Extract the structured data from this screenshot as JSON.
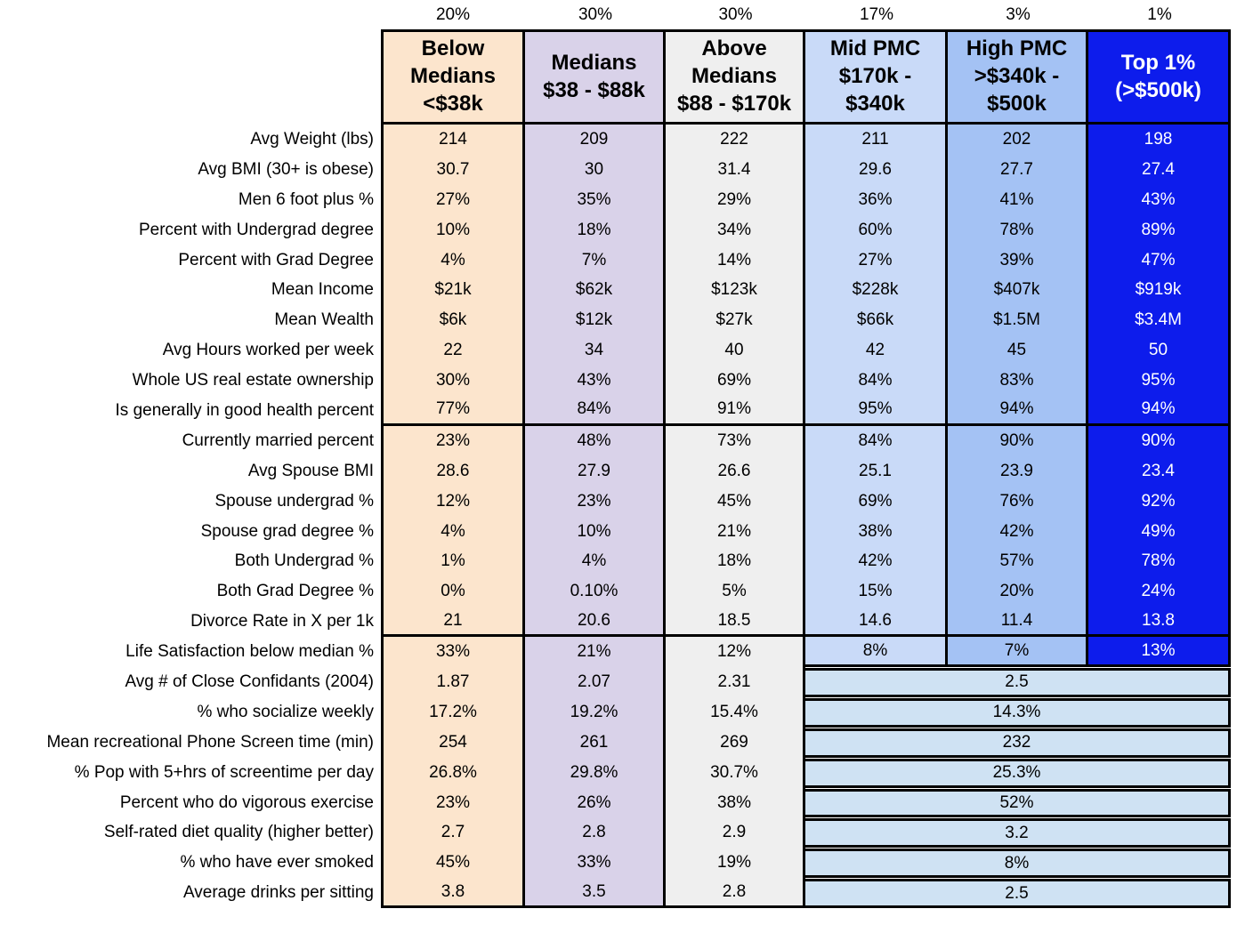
{
  "styles": {
    "column_bg": [
      "#fce5cd",
      "#d9d2e9",
      "#efefef",
      "#c9daf8",
      "#a4c2f4",
      "#0d1cec"
    ],
    "column_text": [
      "#000000",
      "#000000",
      "#000000",
      "#000000",
      "#000000",
      "#ffffff"
    ],
    "merged_bg": "#cfe2f3",
    "border": "#000000"
  },
  "chart_data": {
    "type": "table",
    "column_shares": [
      "20%",
      "30%",
      "30%",
      "17%",
      "3%",
      "1%"
    ],
    "columns": [
      "Below\nMedians\n<$38k",
      "Medians\n$38 - $88k",
      "Above\nMedians\n$88 - $170k",
      "Mid PMC\n$170k -\n$340k",
      "High PMC\n>$340k -\n$500k",
      "Top 1%\n(>$500k)"
    ],
    "rows": [
      {
        "label": "Avg Weight (lbs)",
        "values": [
          "214",
          "209",
          "222",
          "211",
          "202",
          "198"
        ]
      },
      {
        "label": "Avg BMI (30+ is obese)",
        "values": [
          "30.7",
          "30",
          "31.4",
          "29.6",
          "27.7",
          "27.4"
        ]
      },
      {
        "label": "Men 6 foot plus %",
        "values": [
          "27%",
          "35%",
          "29%",
          "36%",
          "41%",
          "43%"
        ]
      },
      {
        "label": "Percent with Undergrad degree",
        "values": [
          "10%",
          "18%",
          "34%",
          "60%",
          "78%",
          "89%"
        ]
      },
      {
        "label": "Percent with Grad Degree",
        "values": [
          "4%",
          "7%",
          "14%",
          "27%",
          "39%",
          "47%"
        ]
      },
      {
        "label": "Mean Income",
        "values": [
          "$21k",
          "$62k",
          "$123k",
          "$228k",
          "$407k",
          "$919k"
        ]
      },
      {
        "label": "Mean Wealth",
        "values": [
          "$6k",
          "$12k",
          "$27k",
          "$66k",
          "$1.5M",
          "$3.4M"
        ]
      },
      {
        "label": "Avg Hours worked per week",
        "values": [
          "22",
          "34",
          "40",
          "42",
          "45",
          "50"
        ]
      },
      {
        "label": "Whole US real estate ownership",
        "values": [
          "30%",
          "43%",
          "69%",
          "84%",
          "83%",
          "95%"
        ]
      },
      {
        "label": "Is generally in good health percent",
        "values": [
          "77%",
          "84%",
          "91%",
          "95%",
          "94%",
          "94%"
        ],
        "section_end": true
      },
      {
        "label": "Currently married percent",
        "values": [
          "23%",
          "48%",
          "73%",
          "84%",
          "90%",
          "90%"
        ]
      },
      {
        "label": "Avg Spouse BMI",
        "values": [
          "28.6",
          "27.9",
          "26.6",
          "25.1",
          "23.9",
          "23.4"
        ]
      },
      {
        "label": "Spouse undergrad %",
        "values": [
          "12%",
          "23%",
          "45%",
          "69%",
          "76%",
          "92%"
        ]
      },
      {
        "label": "Spouse grad degree %",
        "values": [
          "4%",
          "10%",
          "21%",
          "38%",
          "42%",
          "49%"
        ]
      },
      {
        "label": "Both Undergrad %",
        "values": [
          "1%",
          "4%",
          "18%",
          "42%",
          "57%",
          "78%"
        ]
      },
      {
        "label": "Both Grad Degree %",
        "values": [
          "0%",
          "0.10%",
          "5%",
          "15%",
          "20%",
          "24%"
        ]
      },
      {
        "label": "Divorce Rate in X per 1k",
        "values": [
          "21",
          "20.6",
          "18.5",
          "14.6",
          "11.4",
          "13.8"
        ],
        "section_end": true
      },
      {
        "label": "Life Satisfaction below median %",
        "values": [
          "33%",
          "21%",
          "12%",
          "8%",
          "7%",
          "13%"
        ],
        "right_bottom_border": true
      },
      {
        "label": "Avg # of Close Confidants (2004)",
        "values": [
          "1.87",
          "2.07",
          "2.31"
        ],
        "merged": "2.5"
      },
      {
        "label": "% who socialize weekly",
        "values": [
          "17.2%",
          "19.2%",
          "15.4%"
        ],
        "merged": "14.3%"
      },
      {
        "label": "Mean recreational Phone Screen time (min)",
        "values": [
          "254",
          "261",
          "269"
        ],
        "merged": "232"
      },
      {
        "label": "% Pop with 5+hrs of screentime per day",
        "values": [
          "26.8%",
          "29.8%",
          "30.7%"
        ],
        "merged": "25.3%"
      },
      {
        "label": "Percent who do vigorous exercise",
        "values": [
          "23%",
          "26%",
          "38%"
        ],
        "merged": "52%"
      },
      {
        "label": "Self-rated diet quality (higher better)",
        "values": [
          "2.7",
          "2.8",
          "2.9"
        ],
        "merged": "3.2"
      },
      {
        "label": "% who have ever smoked",
        "values": [
          "45%",
          "33%",
          "19%"
        ],
        "merged": "8%"
      },
      {
        "label": "Average drinks per sitting",
        "values": [
          "3.8",
          "3.5",
          "2.8"
        ],
        "merged": "2.5"
      }
    ]
  }
}
